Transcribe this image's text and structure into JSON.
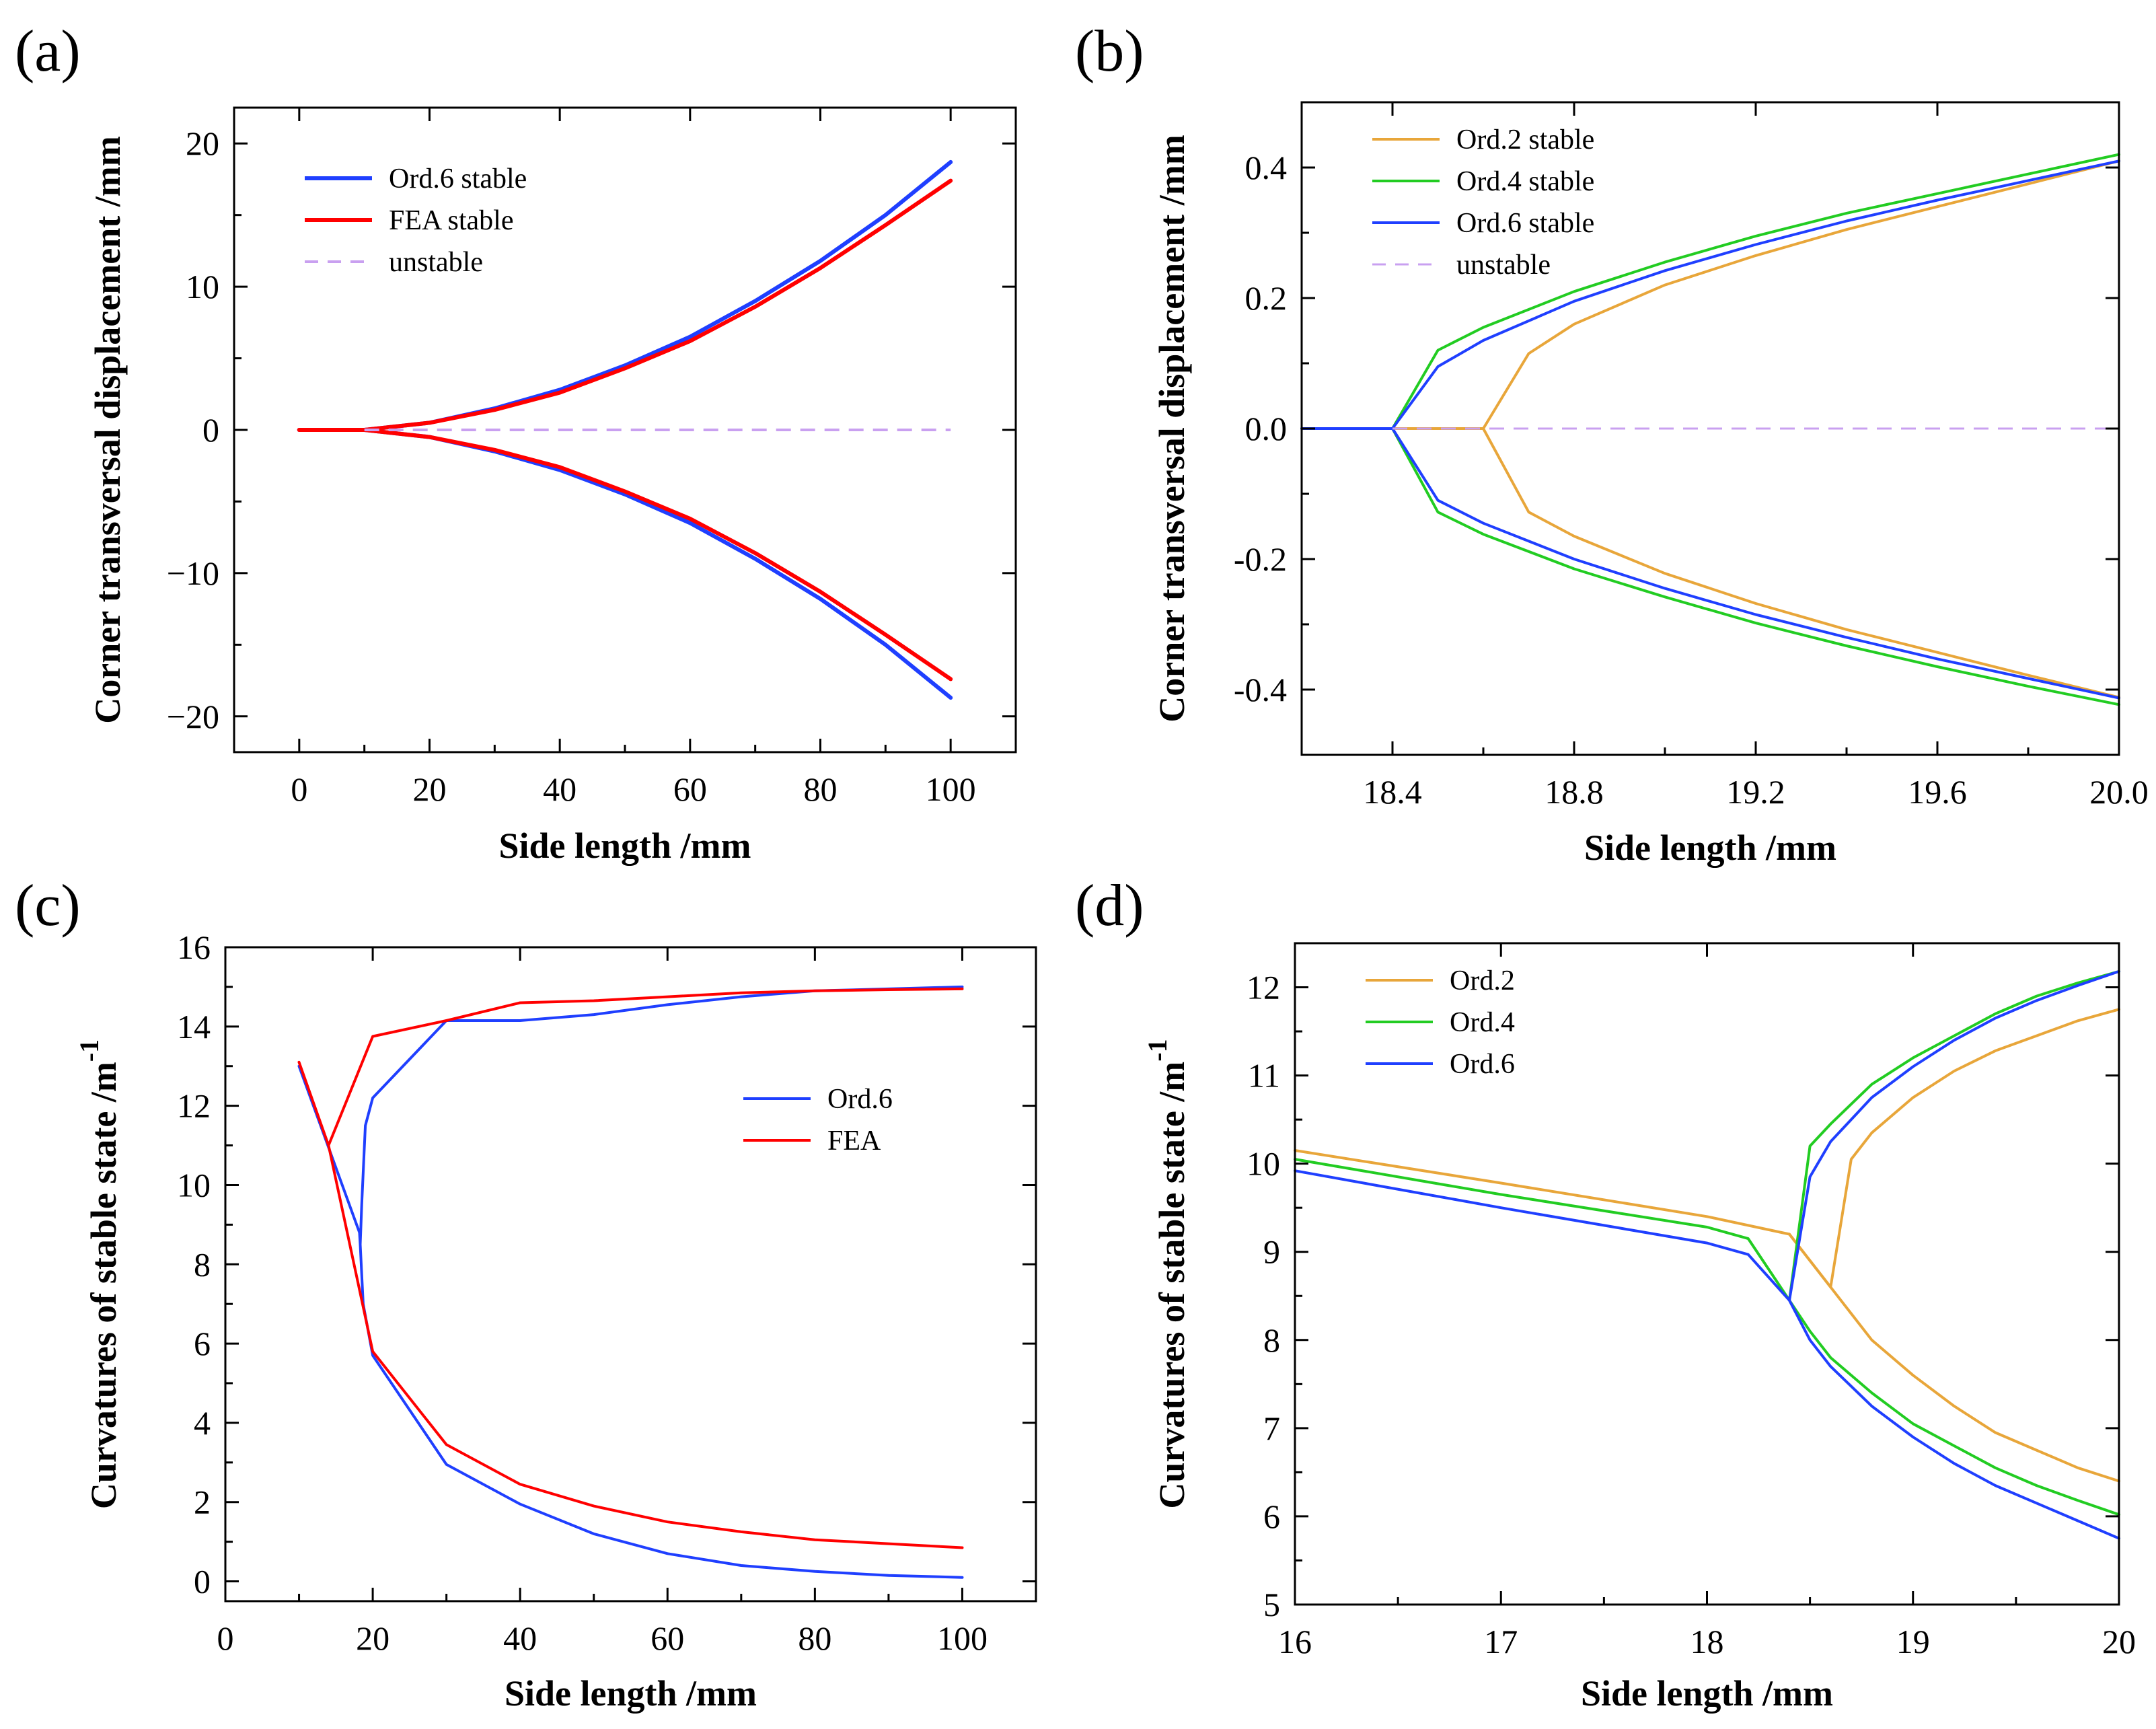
{
  "chart_data": [
    {
      "panel": "(a)",
      "type": "line",
      "title": "",
      "xlabel": "Side length /mm",
      "ylabel": "Corner transversal displacement /mm",
      "ylabel_sup": "",
      "xlim": [
        -10,
        110
      ],
      "ylim": [
        -22.5,
        22.5
      ],
      "xticks": [
        0,
        20,
        40,
        60,
        80,
        100
      ],
      "yticks": [
        -20,
        -10,
        0,
        10,
        20
      ],
      "xtick_labels": [
        "0",
        "20",
        "40",
        "60",
        "80",
        "100"
      ],
      "ytick_labels": [
        "−20",
        "−10",
        "0",
        "10",
        "20"
      ],
      "legend_position": "top-left",
      "series": [
        {
          "name": "Ord.6 stable",
          "legend": "Ord.6 stable",
          "color": "#1f3fff",
          "width": 6,
          "dash": false,
          "x": [
            0,
            10,
            20,
            30,
            40,
            50,
            60,
            70,
            80,
            90,
            100
          ],
          "y": [
            0,
            0,
            0.5,
            1.5,
            2.8,
            4.5,
            6.5,
            9.0,
            11.8,
            15.0,
            18.7
          ]
        },
        {
          "name": "Ord.6 stable (lower branch)",
          "color": "#1f3fff",
          "width": 6,
          "dash": false,
          "x": [
            0,
            10,
            20,
            30,
            40,
            50,
            60,
            70,
            80,
            90,
            100
          ],
          "y": [
            0,
            0,
            -0.5,
            -1.5,
            -2.8,
            -4.5,
            -6.5,
            -9.0,
            -11.8,
            -15.0,
            -18.7
          ]
        },
        {
          "name": "FEA stable",
          "legend": "FEA stable",
          "color": "#ff0000",
          "width": 6,
          "dash": false,
          "x": [
            0,
            10,
            20,
            30,
            40,
            50,
            60,
            70,
            80,
            90,
            100
          ],
          "y": [
            0,
            0,
            0.5,
            1.4,
            2.6,
            4.3,
            6.2,
            8.6,
            11.3,
            14.3,
            17.4
          ]
        },
        {
          "name": "FEA stable (lower branch)",
          "color": "#ff0000",
          "width": 6,
          "dash": false,
          "x": [
            0,
            10,
            20,
            30,
            40,
            50,
            60,
            70,
            80,
            90,
            100
          ],
          "y": [
            0,
            0,
            -0.5,
            -1.4,
            -2.6,
            -4.3,
            -6.2,
            -8.6,
            -11.3,
            -14.3,
            -17.4
          ]
        },
        {
          "name": "unstable",
          "legend": "unstable",
          "color": "#c9a0f0",
          "width": 4,
          "dash": true,
          "x": [
            10,
            100
          ],
          "y": [
            0,
            0
          ]
        }
      ]
    },
    {
      "panel": "(b)",
      "type": "line",
      "title": "",
      "xlabel": "Side length /mm",
      "ylabel": "Corner transversal displacement /mm",
      "ylabel_sup": "",
      "xlim": [
        18.2,
        20.0
      ],
      "ylim": [
        -0.5,
        0.5
      ],
      "xticks": [
        18.4,
        18.8,
        19.2,
        19.6,
        20.0
      ],
      "yticks": [
        -0.4,
        -0.2,
        0.0,
        0.2,
        0.4
      ],
      "xtick_labels": [
        "18.4",
        "18.8",
        "19.2",
        "19.6",
        "20.0"
      ],
      "ytick_labels": [
        "-0.4",
        "-0.2",
        "0.0",
        "0.2",
        "0.4"
      ],
      "legend_position": "top-left",
      "series": [
        {
          "name": "Ord.2 stable",
          "legend": "Ord.2 stable",
          "color": "#e8a63a",
          "width": 4,
          "dash": false,
          "x": [
            18.2,
            18.6,
            18.7,
            18.8,
            19.0,
            19.2,
            19.4,
            19.6,
            19.8,
            20.0
          ],
          "y": [
            0,
            0,
            0.115,
            0.16,
            0.22,
            0.265,
            0.305,
            0.34,
            0.375,
            0.41
          ]
        },
        {
          "name": "Ord.2 stable (lower branch)",
          "color": "#e8a63a",
          "width": 4,
          "dash": false,
          "x": [
            18.6,
            18.7,
            18.8,
            19.0,
            19.2,
            19.4,
            19.6,
            19.8,
            20.0
          ],
          "y": [
            0,
            -0.128,
            -0.165,
            -0.222,
            -0.268,
            -0.308,
            -0.343,
            -0.378,
            -0.412
          ]
        },
        {
          "name": "Ord.4 stable",
          "legend": "Ord.4 stable",
          "color": "#22cc22",
          "width": 4,
          "dash": false,
          "x": [
            18.2,
            18.4,
            18.5,
            18.6,
            18.8,
            19.0,
            19.2,
            19.4,
            19.6,
            19.8,
            20.0
          ],
          "y": [
            0,
            0,
            0.12,
            0.155,
            0.21,
            0.255,
            0.295,
            0.33,
            0.36,
            0.39,
            0.42
          ]
        },
        {
          "name": "Ord.4 stable (lower branch)",
          "color": "#22cc22",
          "width": 4,
          "dash": false,
          "x": [
            18.4,
            18.5,
            18.6,
            18.8,
            19.0,
            19.2,
            19.4,
            19.6,
            19.8,
            20.0
          ],
          "y": [
            0,
            -0.128,
            -0.162,
            -0.215,
            -0.258,
            -0.298,
            -0.333,
            -0.365,
            -0.395,
            -0.423
          ]
        },
        {
          "name": "Ord.6 stable",
          "legend": "Ord.6 stable",
          "color": "#1f3fff",
          "width": 4,
          "dash": false,
          "x": [
            18.2,
            18.4,
            18.5,
            18.6,
            18.8,
            19.0,
            19.2,
            19.4,
            19.6,
            19.8,
            20.0
          ],
          "y": [
            0,
            0,
            0.095,
            0.135,
            0.195,
            0.242,
            0.282,
            0.318,
            0.35,
            0.38,
            0.41
          ]
        },
        {
          "name": "Ord.6 stable (lower branch)",
          "color": "#1f3fff",
          "width": 4,
          "dash": false,
          "x": [
            18.4,
            18.5,
            18.6,
            18.8,
            19.0,
            19.2,
            19.4,
            19.6,
            19.8,
            20.0
          ],
          "y": [
            0,
            -0.11,
            -0.145,
            -0.2,
            -0.245,
            -0.285,
            -0.32,
            -0.353,
            -0.383,
            -0.413
          ]
        },
        {
          "name": "unstable",
          "legend": "unstable",
          "color": "#c9a0f0",
          "width": 3,
          "dash": true,
          "x": [
            18.4,
            20.0
          ],
          "y": [
            0,
            0
          ]
        }
      ]
    },
    {
      "panel": "(c)",
      "type": "line",
      "title": "",
      "xlabel": "Side length /mm",
      "ylabel": "Curvatures of stable state /m",
      "ylabel_sup": "-1",
      "xlim": [
        0,
        110
      ],
      "ylim": [
        -0.5,
        16
      ],
      "xticks": [
        0,
        20,
        40,
        60,
        80,
        100
      ],
      "yticks": [
        0,
        2,
        4,
        6,
        8,
        10,
        12,
        14,
        16
      ],
      "xtick_labels": [
        "0",
        "20",
        "40",
        "60",
        "80",
        "100"
      ],
      "ytick_labels": [
        "0",
        "2",
        "4",
        "6",
        "8",
        "10",
        "12",
        "14",
        "16"
      ],
      "legend_position": "center-right",
      "series": [
        {
          "name": "Ord.6",
          "legend": "Ord.6",
          "color": "#1f3fff",
          "width": 4,
          "dash": false,
          "x": [
            10,
            18.2,
            18.3,
            18.5,
            19,
            20,
            30,
            40,
            50,
            60,
            70,
            80,
            90,
            100
          ],
          "y": [
            13.0,
            8.8,
            8.5,
            9.5,
            11.5,
            12.2,
            14.15,
            14.15,
            14.3,
            14.55,
            14.75,
            14.9,
            14.95,
            15.0
          ]
        },
        {
          "name": "Ord.6 (lower branch)",
          "color": "#1f3fff",
          "width": 4,
          "dash": false,
          "x": [
            18.3,
            18.7,
            20,
            30,
            40,
            50,
            60,
            70,
            80,
            90,
            100
          ],
          "y": [
            8.5,
            7.0,
            5.7,
            2.95,
            1.95,
            1.2,
            0.7,
            0.4,
            0.25,
            0.15,
            0.1
          ]
        },
        {
          "name": "FEA",
          "legend": "FEA",
          "color": "#ff0000",
          "width": 4,
          "dash": false,
          "x": [
            10,
            14,
            20,
            30,
            40,
            50,
            60,
            70,
            80,
            90,
            100
          ],
          "y": [
            13.1,
            11.0,
            13.75,
            14.15,
            14.6,
            14.65,
            14.75,
            14.85,
            14.9,
            14.93,
            14.95
          ]
        },
        {
          "name": "FEA (lower branch)",
          "color": "#ff0000",
          "width": 4,
          "dash": false,
          "x": [
            14,
            20,
            30,
            40,
            50,
            60,
            70,
            80,
            90,
            100
          ],
          "y": [
            11.0,
            5.8,
            3.45,
            2.45,
            1.9,
            1.5,
            1.25,
            1.05,
            0.95,
            0.85
          ]
        }
      ]
    },
    {
      "panel": "(d)",
      "type": "line",
      "title": "",
      "xlabel": "Side length /mm",
      "ylabel": "Curvatures of stable state /m",
      "ylabel_sup": "-1",
      "xlim": [
        16,
        20
      ],
      "ylim": [
        5,
        12.5
      ],
      "xticks": [
        16,
        17,
        18,
        19,
        20
      ],
      "yticks": [
        5,
        6,
        7,
        8,
        9,
        10,
        11,
        12
      ],
      "xtick_labels": [
        "16",
        "17",
        "18",
        "19",
        "20"
      ],
      "ytick_labels": [
        "5",
        "6",
        "7",
        "8",
        "9",
        "10",
        "11",
        "12"
      ],
      "legend_position": "top-left",
      "series": [
        {
          "name": "Ord.2",
          "legend": "Ord.2",
          "color": "#e8a63a",
          "width": 4,
          "dash": false,
          "x": [
            16,
            17,
            18,
            18.4,
            18.6,
            18.7,
            18.8,
            19.0,
            19.2,
            19.4,
            19.6,
            19.8,
            20.0
          ],
          "y": [
            10.15,
            9.78,
            9.4,
            9.2,
            8.6,
            10.05,
            10.35,
            10.75,
            11.05,
            11.28,
            11.45,
            11.62,
            11.75
          ]
        },
        {
          "name": "Ord.2 (lower branch)",
          "color": "#e8a63a",
          "width": 4,
          "dash": false,
          "x": [
            18.4,
            18.6,
            18.7,
            18.8,
            19.0,
            19.2,
            19.4,
            19.6,
            19.8,
            20.0
          ],
          "y": [
            9.2,
            8.6,
            8.3,
            8.0,
            7.6,
            7.25,
            6.95,
            6.75,
            6.55,
            6.4
          ]
        },
        {
          "name": "Ord.4",
          "legend": "Ord.4",
          "color": "#22cc22",
          "width": 4,
          "dash": false,
          "x": [
            16,
            17,
            18,
            18.2,
            18.4,
            18.5,
            18.6,
            18.8,
            19.0,
            19.2,
            19.4,
            19.6,
            19.8,
            20.0
          ],
          "y": [
            10.05,
            9.65,
            9.28,
            9.15,
            8.45,
            10.2,
            10.45,
            10.9,
            11.2,
            11.45,
            11.7,
            11.9,
            12.05,
            12.18
          ]
        },
        {
          "name": "Ord.4 (lower branch)",
          "color": "#22cc22",
          "width": 4,
          "dash": false,
          "x": [
            18.4,
            18.5,
            18.6,
            18.8,
            19.0,
            19.2,
            19.4,
            19.6,
            19.8,
            20.0
          ],
          "y": [
            8.45,
            8.1,
            7.8,
            7.4,
            7.05,
            6.8,
            6.55,
            6.35,
            6.18,
            6.02
          ]
        },
        {
          "name": "Ord.6",
          "legend": "Ord.6",
          "color": "#1f3fff",
          "width": 4,
          "dash": false,
          "x": [
            16,
            17,
            18,
            18.2,
            18.4,
            18.5,
            18.6,
            18.8,
            19.0,
            19.2,
            19.4,
            19.6,
            19.8,
            20.0
          ],
          "y": [
            9.92,
            9.5,
            9.1,
            8.97,
            8.45,
            9.85,
            10.25,
            10.75,
            11.1,
            11.4,
            11.65,
            11.85,
            12.02,
            12.18
          ]
        },
        {
          "name": "Ord.6 (lower branch)",
          "color": "#1f3fff",
          "width": 4,
          "dash": false,
          "x": [
            18.4,
            18.5,
            18.6,
            18.8,
            19.0,
            19.2,
            19.4,
            19.6,
            19.8,
            20.0
          ],
          "y": [
            8.45,
            8.0,
            7.7,
            7.25,
            6.9,
            6.6,
            6.35,
            6.15,
            5.95,
            5.75
          ]
        }
      ]
    }
  ]
}
